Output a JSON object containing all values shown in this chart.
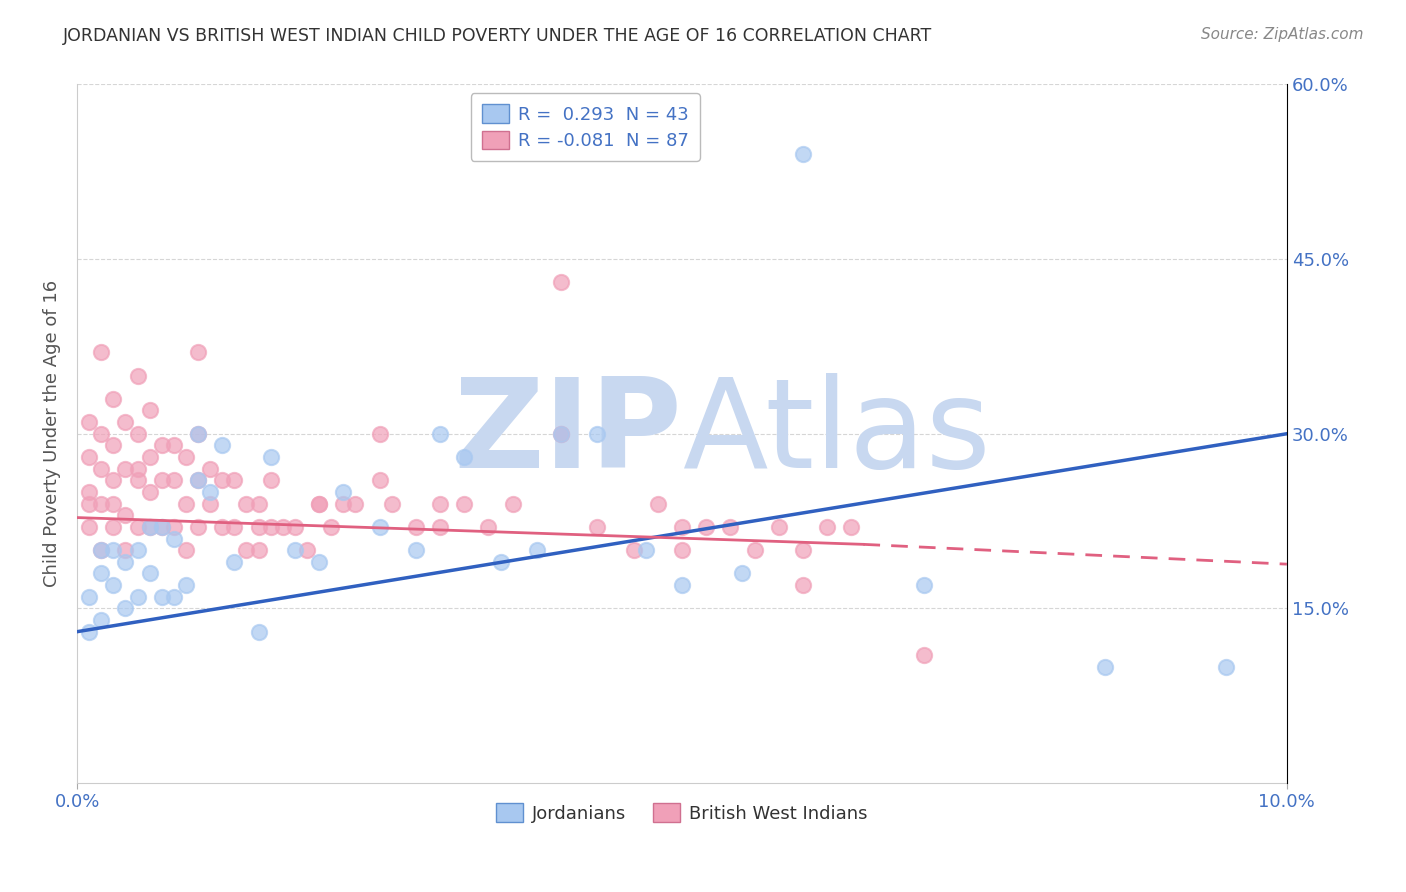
{
  "title": "JORDANIAN VS BRITISH WEST INDIAN CHILD POVERTY UNDER THE AGE OF 16 CORRELATION CHART",
  "source": "Source: ZipAtlas.com",
  "ylabel": "Child Poverty Under the Age of 16",
  "xlabel_jordanians": "Jordanians",
  "xlabel_bwi": "British West Indians",
  "legend_jordanians": "R =  0.293  N = 43",
  "legend_bwi": "R = -0.081  N = 87",
  "xlim": [
    0.0,
    0.1
  ],
  "ylim": [
    0.0,
    0.6
  ],
  "ytick_values": [
    0.15,
    0.3,
    0.45,
    0.6
  ],
  "ytick_labels": [
    "15.0%",
    "30.0%",
    "45.0%",
    "60.0%"
  ],
  "blue_color": "#a8c8f0",
  "pink_color": "#f0a0b8",
  "trend_blue": "#3060c0",
  "trend_pink": "#e06080",
  "background_color": "#ffffff",
  "watermark_color": "#c8d8f0",
  "jordanians_x": [
    0.001,
    0.001,
    0.002,
    0.002,
    0.002,
    0.003,
    0.003,
    0.004,
    0.004,
    0.005,
    0.005,
    0.006,
    0.006,
    0.007,
    0.007,
    0.008,
    0.008,
    0.009,
    0.01,
    0.01,
    0.011,
    0.012,
    0.013,
    0.015,
    0.016,
    0.018,
    0.02,
    0.022,
    0.025,
    0.028,
    0.03,
    0.032,
    0.035,
    0.038,
    0.04,
    0.043,
    0.047,
    0.05,
    0.055,
    0.06,
    0.07,
    0.085,
    0.095
  ],
  "jordanians_y": [
    0.13,
    0.16,
    0.14,
    0.18,
    0.2,
    0.17,
    0.2,
    0.15,
    0.19,
    0.16,
    0.2,
    0.18,
    0.22,
    0.16,
    0.22,
    0.16,
    0.21,
    0.17,
    0.26,
    0.3,
    0.25,
    0.29,
    0.19,
    0.13,
    0.28,
    0.2,
    0.19,
    0.25,
    0.22,
    0.2,
    0.3,
    0.28,
    0.19,
    0.2,
    0.3,
    0.3,
    0.2,
    0.17,
    0.18,
    0.54,
    0.17,
    0.1,
    0.1
  ],
  "bwi_x": [
    0.001,
    0.001,
    0.001,
    0.001,
    0.002,
    0.002,
    0.002,
    0.002,
    0.003,
    0.003,
    0.003,
    0.003,
    0.004,
    0.004,
    0.004,
    0.004,
    0.005,
    0.005,
    0.005,
    0.005,
    0.006,
    0.006,
    0.006,
    0.006,
    0.007,
    0.007,
    0.007,
    0.008,
    0.008,
    0.008,
    0.009,
    0.009,
    0.009,
    0.01,
    0.01,
    0.01,
    0.011,
    0.011,
    0.012,
    0.012,
    0.013,
    0.013,
    0.014,
    0.014,
    0.015,
    0.015,
    0.016,
    0.016,
    0.017,
    0.018,
    0.019,
    0.02,
    0.021,
    0.022,
    0.023,
    0.025,
    0.026,
    0.028,
    0.03,
    0.032,
    0.034,
    0.036,
    0.04,
    0.043,
    0.046,
    0.048,
    0.05,
    0.052,
    0.054,
    0.056,
    0.058,
    0.06,
    0.062,
    0.064,
    0.001,
    0.002,
    0.003,
    0.005,
    0.01,
    0.015,
    0.02,
    0.025,
    0.03,
    0.04,
    0.05,
    0.06,
    0.07
  ],
  "bwi_y": [
    0.22,
    0.25,
    0.28,
    0.31,
    0.2,
    0.24,
    0.27,
    0.3,
    0.22,
    0.26,
    0.29,
    0.33,
    0.2,
    0.23,
    0.27,
    0.31,
    0.22,
    0.26,
    0.3,
    0.35,
    0.22,
    0.25,
    0.28,
    0.32,
    0.22,
    0.26,
    0.29,
    0.22,
    0.26,
    0.29,
    0.2,
    0.24,
    0.28,
    0.22,
    0.26,
    0.3,
    0.24,
    0.27,
    0.22,
    0.26,
    0.22,
    0.26,
    0.2,
    0.24,
    0.2,
    0.24,
    0.22,
    0.26,
    0.22,
    0.22,
    0.2,
    0.24,
    0.22,
    0.24,
    0.24,
    0.26,
    0.24,
    0.22,
    0.24,
    0.24,
    0.22,
    0.24,
    0.43,
    0.22,
    0.2,
    0.24,
    0.2,
    0.22,
    0.22,
    0.2,
    0.22,
    0.2,
    0.22,
    0.22,
    0.24,
    0.37,
    0.24,
    0.27,
    0.37,
    0.22,
    0.24,
    0.3,
    0.22,
    0.3,
    0.22,
    0.17,
    0.11
  ]
}
